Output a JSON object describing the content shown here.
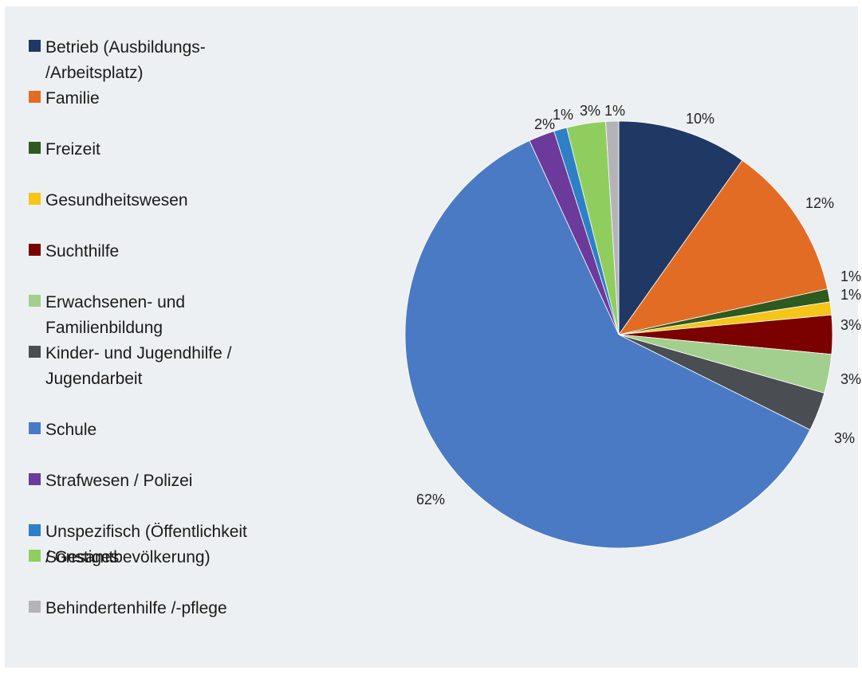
{
  "chart_data": {
    "type": "pie",
    "categories": [
      "Betrieb (Ausbildungs-\n/Arbeitsplatz)",
      "Familie",
      "Freizeit",
      "Gesundheitswesen",
      "Suchthilfe",
      "Erwachsenen- und\nFamilienbildung",
      "Kinder- und Jugendhilfe /\nJugendarbeit",
      "Schule",
      "Strafwesen / Polizei",
      "Unspezifisch (Öffentlichkeit\n/ Gesamtbevölkerung)",
      "Sonstiges",
      "Behindertenhilfe /-pflege"
    ],
    "values": [
      10,
      12,
      1,
      1,
      3,
      3,
      3,
      62,
      2,
      1,
      3,
      1
    ],
    "labels": [
      "10%",
      "12%",
      "1%",
      "1%",
      "3%",
      "3%",
      "3%",
      "62%",
      "2%",
      "1%",
      "3%",
      "1%"
    ],
    "colors": [
      "#1f3864",
      "#e36c25",
      "#2e5a1f",
      "#f5c518",
      "#7b0000",
      "#a2cf8e",
      "#4a4d51",
      "#4a7ac4",
      "#6b3a9a",
      "#2d80c6",
      "#8fce5e",
      "#b4b4b8"
    ],
    "legend_position": "left"
  }
}
